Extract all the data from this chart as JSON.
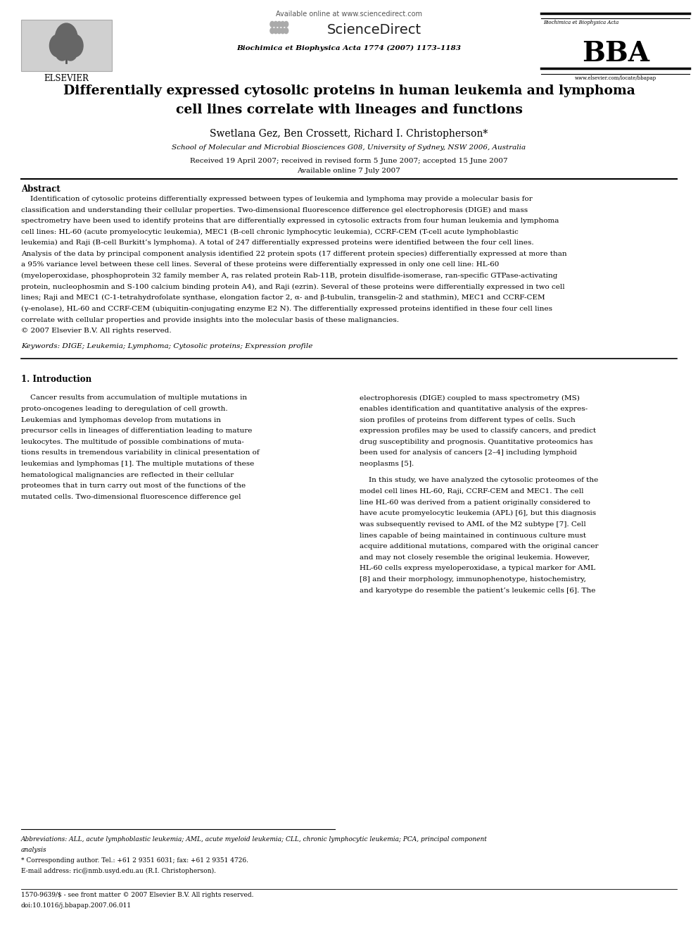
{
  "fig_width": 9.92,
  "fig_height": 13.23,
  "bg_color": "#ffffff",
  "header": {
    "available_online": "Available online at www.sciencedirect.com",
    "sciencedirect": "ScienceDirect",
    "journal_name": "Biochimica et Biophysica Acta 1774 (2007) 1173–1183",
    "bba_subtitle": "Biochimica et Biophysica Acta",
    "bba_logo": "BBA",
    "elsevier": "ELSEVIER",
    "website": "www.elsevier.com/locate/bbapap"
  },
  "title": "Differentially expressed cytosolic proteins in human leukemia and lymphoma\ncell lines correlate with lineages and functions",
  "authors": "Swetlana Gez, Ben Crossett, Richard I. Christopherson*",
  "affiliation": "School of Molecular and Microbial Biosciences G08, University of Sydney, NSW 2006, Australia",
  "received": "Received 19 April 2007; received in revised form 5 June 2007; accepted 15 June 2007",
  "available": "Available online 7 July 2007",
  "abstract_title": "Abstract",
  "keywords": "Keywords: DIGE; Leukemia; Lymphoma; Cytosolic proteins; Expression profile",
  "section1_title": "1. Introduction",
  "footnote_abbrev": "Abbreviations: ALL, acute lymphoblastic leukemia; AML, acute myeloid leukemia; CLL, chronic lymphocytic leukemia; PCA, principal component",
  "footnote_abbrev2": "analysis",
  "footnote_star": "* Corresponding author. Tel.: +61 2 9351 6031; fax: +61 2 9351 4726.",
  "footnote_email": "E-mail address: ric@nmb.usyd.edu.au (R.I. Christopherson).",
  "issn": "1570-9639/$ - see front matter © 2007 Elsevier B.V. All rights reserved.",
  "doi": "doi:10.1016/j.bbapap.2007.06.011",
  "abstract_lines": [
    "    Identification of cytosolic proteins differentially expressed between types of leukemia and lymphoma may provide a molecular basis for",
    "classification and understanding their cellular properties. Two-dimensional fluorescence difference gel electrophoresis (DIGE) and mass",
    "spectrometry have been used to identify proteins that are differentially expressed in cytosolic extracts from four human leukemia and lymphoma",
    "cell lines: HL-60 (acute promyelocytic leukemia), MEC1 (B-cell chronic lymphocytic leukemia), CCRF-CEM (T-cell acute lymphoblastic",
    "leukemia) and Raji (B-cell Burkitt’s lymphoma). A total of 247 differentially expressed proteins were identified between the four cell lines.",
    "Analysis of the data by principal component analysis identified 22 protein spots (17 different protein species) differentially expressed at more than",
    "a 95% variance level between these cell lines. Several of these proteins were differentially expressed in only one cell line: HL-60",
    "(myeloperoxidase, phosphoprotein 32 family member A, ras related protein Rab-11B, protein disulfide-isomerase, ran-specific GTPase-activating",
    "protein, nucleophosmin and S-100 calcium binding protein A4), and Raji (ezrin). Several of these proteins were differentially expressed in two cell",
    "lines; Raji and MEC1 (C-1-tetrahydrofolate synthase, elongation factor 2, α- and β-tubulin, transgelin-2 and stathmin), MEC1 and CCRF-CEM",
    "(γ-enolase), HL-60 and CCRF-CEM (ubiquitin-conjugating enzyme E2 N). The differentially expressed proteins identified in these four cell lines",
    "correlate with cellular properties and provide insights into the molecular basis of these malignancies.",
    "© 2007 Elsevier B.V. All rights reserved."
  ],
  "col1_lines": [
    "    Cancer results from accumulation of multiple mutations in",
    "proto-oncogenes leading to deregulation of cell growth.",
    "Leukemias and lymphomas develop from mutations in",
    "precursor cells in lineages of differentiation leading to mature",
    "leukocytes. The multitude of possible combinations of muta-",
    "tions results in tremendous variability in clinical presentation of",
    "leukemias and lymphomas [1]. The multiple mutations of these",
    "hematological malignancies are reflected in their cellular",
    "proteomes that in turn carry out most of the functions of the",
    "mutated cells. Two-dimensional fluorescence difference gel"
  ],
  "col2_lines": [
    "electrophoresis (DIGE) coupled to mass spectrometry (MS)",
    "enables identification and quantitative analysis of the expres-",
    "sion profiles of proteins from different types of cells. Such",
    "expression profiles may be used to classify cancers, and predict",
    "drug susceptibility and prognosis. Quantitative proteomics has",
    "been used for analysis of cancers [2–4] including lymphoid",
    "neoplasms [5].",
    "",
    "    In this study, we have analyzed the cytosolic proteomes of the",
    "model cell lines HL-60, Raji, CCRF-CEM and MEC1. The cell",
    "line HL-60 was derived from a patient originally considered to",
    "have acute promyelocytic leukemia (APL) [6], but this diagnosis",
    "was subsequently revised to AML of the M2 subtype [7]. Cell",
    "lines capable of being maintained in continuous culture must",
    "acquire additional mutations, compared with the original cancer",
    "and may not closely resemble the original leukemia. However,",
    "HL-60 cells express myeloperoxidase, a typical marker for AML",
    "[8] and their morphology, immunophenotype, histochemistry,",
    "and karyotype do resemble the patient’s leukemic cells [6]. The"
  ]
}
